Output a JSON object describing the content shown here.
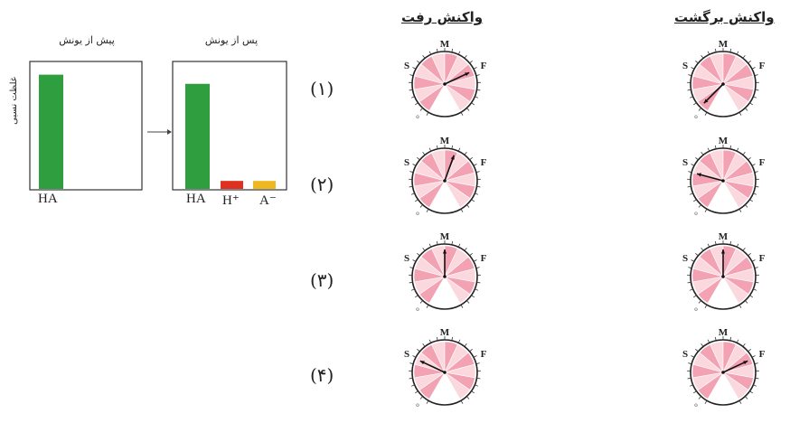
{
  "bar_panels": {
    "before": {
      "title": "پیش از یونش",
      "category": "HA"
    },
    "after": {
      "title": "پس از یونش",
      "categories": [
        "HA",
        "H⁺",
        "A⁻"
      ]
    },
    "ylabel": "غلظت نسبی"
  },
  "chart_data": [
    {
      "type": "bar",
      "title": "پیش از یونش",
      "categories": [
        "HA"
      ],
      "values": [
        1.0
      ],
      "ylabel": "غلظت نسبی",
      "colors": [
        "#2e9e3e"
      ],
      "ylim": [
        0,
        1.1
      ]
    },
    {
      "type": "bar",
      "title": "پس از یونش",
      "categories": [
        "HA",
        "H⁺",
        "A⁻"
      ],
      "values": [
        0.92,
        0.07,
        0.07
      ],
      "colors": [
        "#2e9e3e",
        "#e03020",
        "#f0b820"
      ],
      "ylim": [
        0,
        1.1
      ]
    }
  ],
  "columns": {
    "forward": "واکنش رفت",
    "backward": "واکنش برگشت"
  },
  "rows": [
    "(۱)",
    "(۲)",
    "(۳)",
    "(۴)"
  ],
  "gauge_labels": {
    "s": "S",
    "m": "M",
    "f": "F",
    "o": "o"
  },
  "gauges": {
    "forward": [
      {
        "needle_deg": 65
      },
      {
        "needle_deg": 20
      },
      {
        "needle_deg": 0
      },
      {
        "needle_deg": -65
      }
    ],
    "backward": [
      {
        "needle_deg": -135
      },
      {
        "needle_deg": -75
      },
      {
        "needle_deg": 0
      },
      {
        "needle_deg": 65
      }
    ]
  },
  "colors": {
    "green": "#2e9e3e",
    "red": "#e03020",
    "yellow": "#f0b820",
    "pink": "#f2a2b2",
    "pink_light": "#fbd7de"
  }
}
